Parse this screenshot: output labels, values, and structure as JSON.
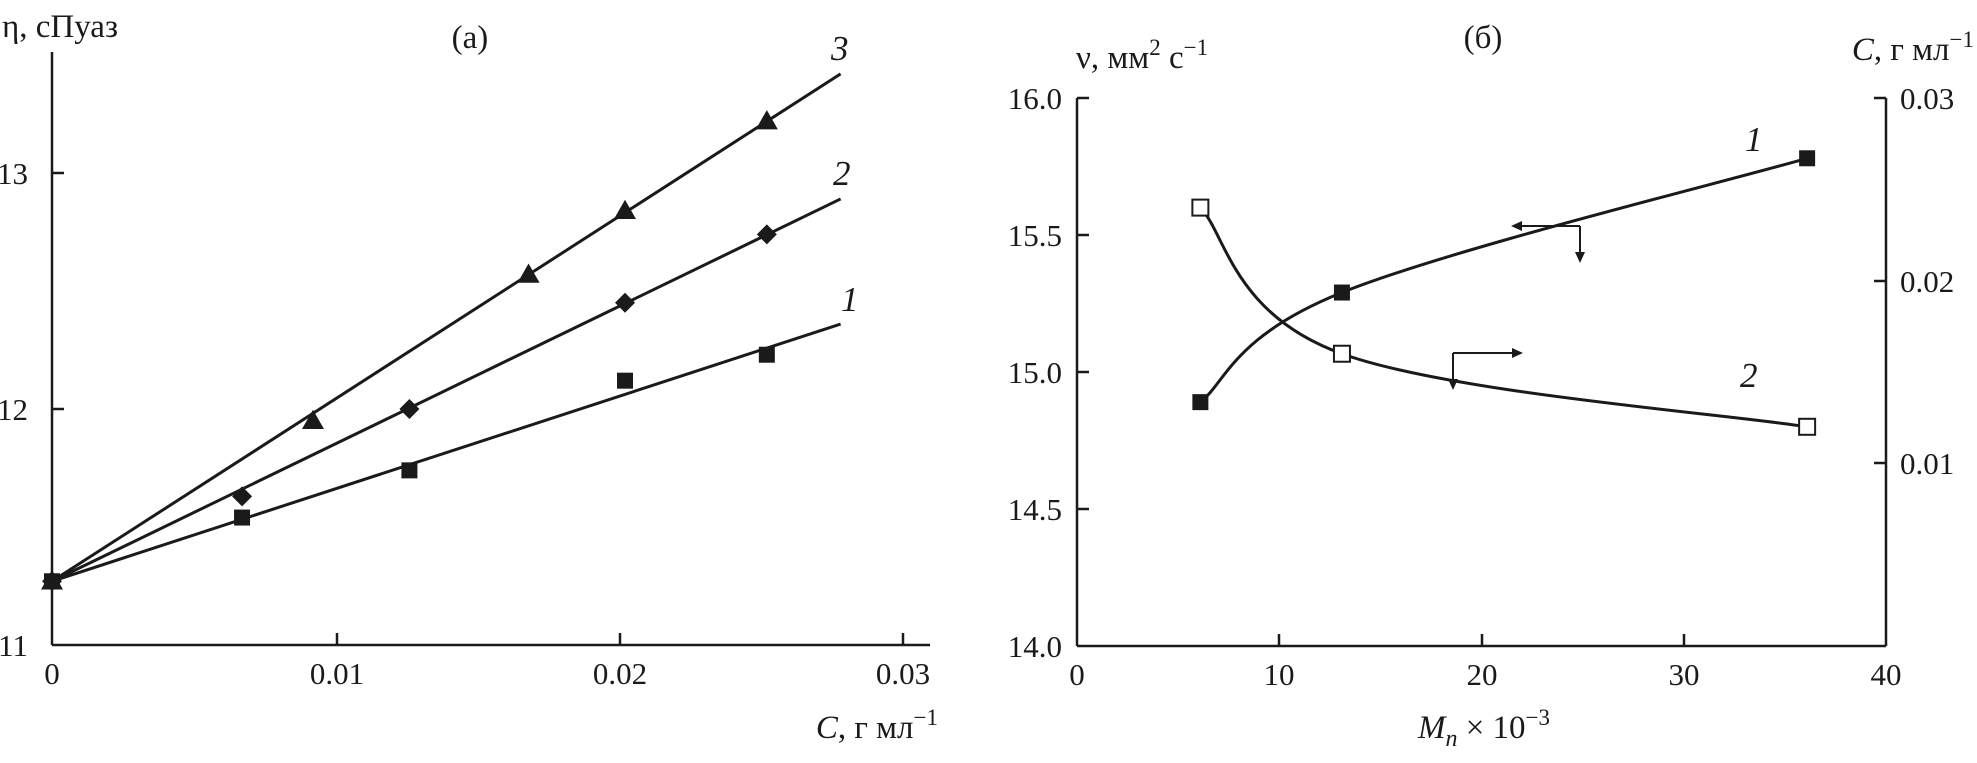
{
  "chart_data": [
    {
      "type": "scatter",
      "panel_label": "(а)",
      "xlabel": {
        "prefix": "C",
        "rest": ", г мл",
        "sup": "−1"
      },
      "ylabel": "η, сПуаз",
      "xlim": [
        0,
        0.03
      ],
      "ylim": [
        11,
        13.5
      ],
      "xticks": [
        "0",
        "0.01",
        "0.02",
        "0.03"
      ],
      "yticks": [
        "11",
        "12",
        "13"
      ],
      "grid": false,
      "series": [
        {
          "curve_label": "1",
          "marker": "square",
          "points": [
            [
              0,
              11.27
            ],
            [
              0.0067,
              11.54
            ],
            [
              0.0126,
              11.74
            ],
            [
              0.0202,
              12.12
            ],
            [
              0.0252,
              12.23
            ]
          ],
          "fit": [
            [
              0,
              11.27
            ],
            [
              0.0278,
              12.36
            ]
          ]
        },
        {
          "curve_label": "2",
          "marker": "diamond",
          "points": [
            [
              0,
              11.27
            ],
            [
              0.0067,
              11.63
            ],
            [
              0.0126,
              12.0
            ],
            [
              0.0202,
              12.45
            ],
            [
              0.0252,
              12.74
            ]
          ],
          "fit": [
            [
              0,
              11.27
            ],
            [
              0.0278,
              12.89
            ]
          ]
        },
        {
          "curve_label": "3",
          "marker": "triangle",
          "points": [
            [
              0,
              11.27
            ],
            [
              0.0092,
              11.95
            ],
            [
              0.0168,
              12.57
            ],
            [
              0.0202,
              12.84
            ],
            [
              0.0252,
              13.22
            ]
          ],
          "fit": [
            [
              0,
              11.27
            ],
            [
              0.0278,
              13.42
            ]
          ]
        }
      ]
    },
    {
      "type": "line",
      "panel_label": "(б)",
      "xlabel": {
        "prefix": "M",
        "sub": "n",
        "rest": " × 10",
        "sup": "−3"
      },
      "ylabel_left": {
        "text": "ν, мм",
        "sup1": "2",
        "mid": " с",
        "sup2": "−1"
      },
      "ylabel_right": {
        "prefix": "C",
        "rest": ", г мл",
        "sup": "−1"
      },
      "xlim": [
        0,
        40
      ],
      "ylim_left": [
        14.0,
        16.0
      ],
      "ylim_right": [
        0,
        0.03
      ],
      "xticks": [
        "0",
        "10",
        "20",
        "30",
        "40"
      ],
      "yticks_left": [
        "14.0",
        "14.5",
        "15.0",
        "15.5",
        "16.0"
      ],
      "yticks_right": [
        "0.01",
        "0.02",
        "0.03"
      ],
      "grid": false,
      "series": [
        {
          "curve_label": "1",
          "marker": "filled-square",
          "axis": "left",
          "points": [
            [
              6.1,
              14.89
            ],
            [
              13.1,
              15.29
            ],
            [
              36.1,
              15.78
            ]
          ]
        },
        {
          "curve_label": "2",
          "marker": "open-square",
          "axis": "right",
          "points": [
            [
              6.1,
              0.024
            ],
            [
              13.1,
              0.016
            ],
            [
              36.1,
              0.012
            ]
          ]
        }
      ]
    }
  ]
}
